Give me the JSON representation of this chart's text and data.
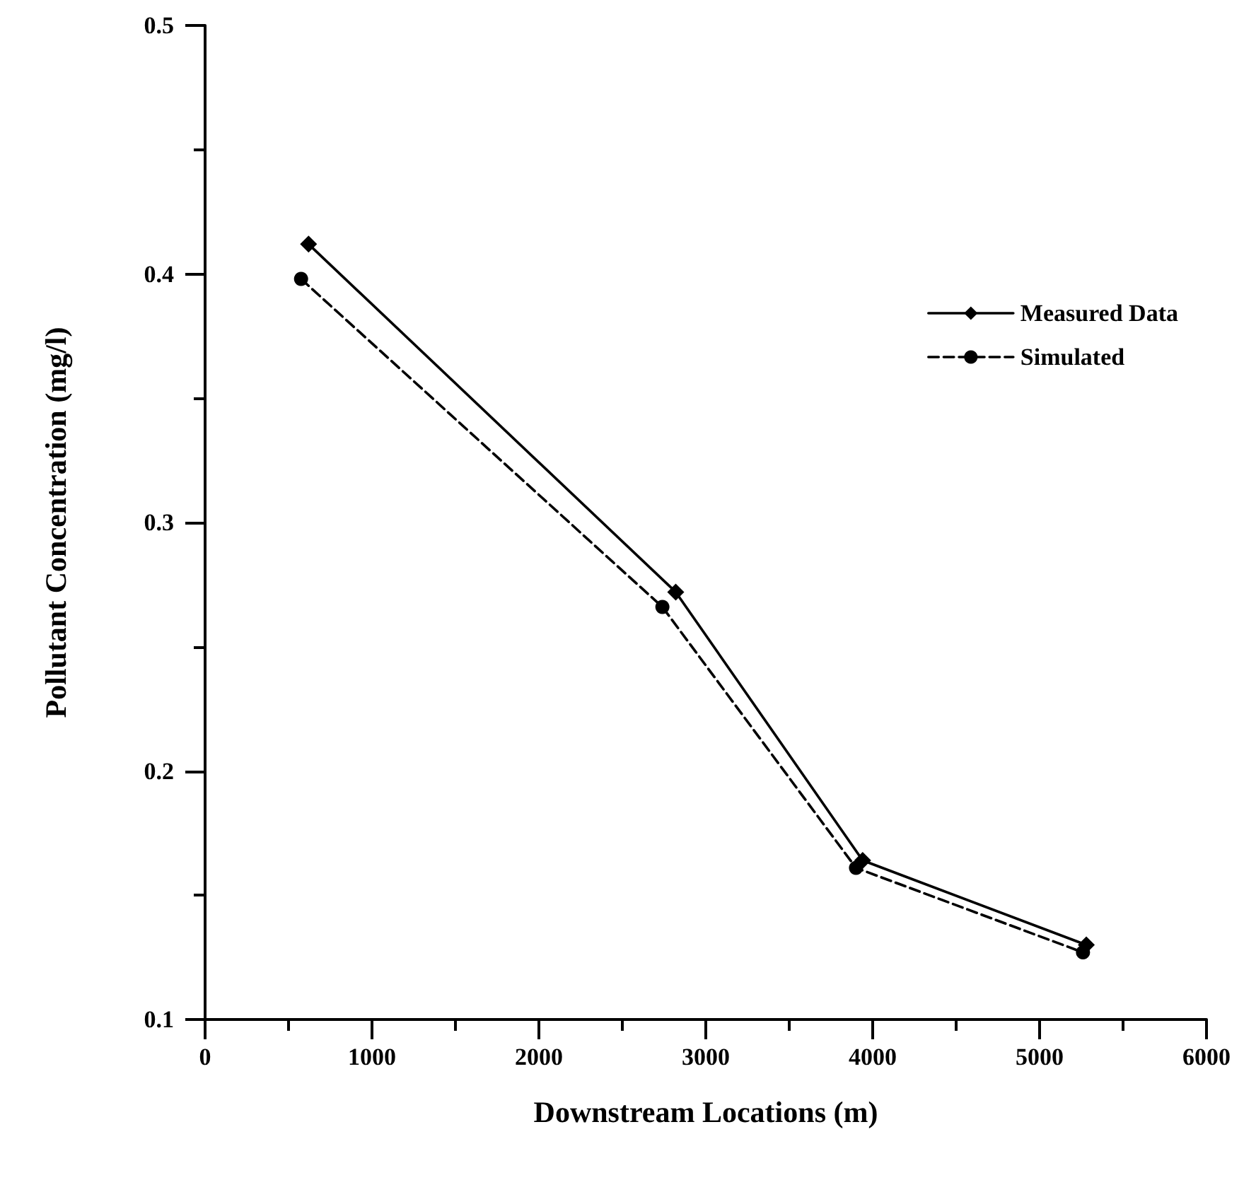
{
  "chart_data": {
    "type": "line",
    "xlabel": "Downstream Locations (m)",
    "ylabel": "Pollutant Concentration (mg/l)",
    "xlim": [
      0,
      6000
    ],
    "xticks": [
      0,
      1000,
      2000,
      3000,
      4000,
      5000,
      6000
    ],
    "ylim": [
      0.1,
      0.5
    ],
    "yticks": [
      0.1,
      0.2,
      0.3,
      0.4,
      0.5
    ],
    "grid": false,
    "legend": "top right",
    "series": [
      {
        "name": "Measured Data",
        "color": "#000000",
        "marker": "diamond",
        "line_style": "solid",
        "x": [
          620,
          2820,
          3940,
          5280
        ],
        "values": [
          0.412,
          0.272,
          0.164,
          0.13
        ]
      },
      {
        "name": "Simulated",
        "color": "#000000",
        "marker": "circle",
        "line_style": "dashed",
        "x": [
          575,
          2740,
          3900,
          5260
        ],
        "values": [
          0.398,
          0.266,
          0.161,
          0.127
        ]
      }
    ]
  }
}
